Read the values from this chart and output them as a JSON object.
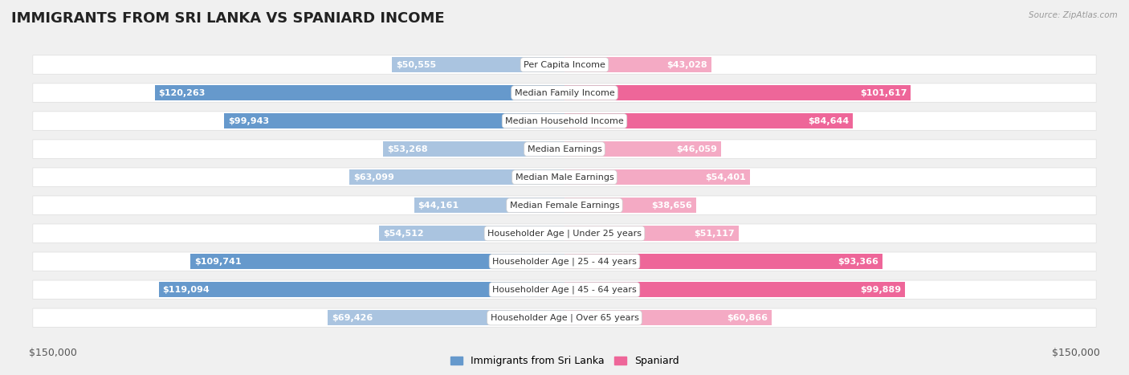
{
  "title": "IMMIGRANTS FROM SRI LANKA VS SPANIARD INCOME",
  "source": "Source: ZipAtlas.com",
  "categories": [
    "Per Capita Income",
    "Median Family Income",
    "Median Household Income",
    "Median Earnings",
    "Median Male Earnings",
    "Median Female Earnings",
    "Householder Age | Under 25 years",
    "Householder Age | 25 - 44 years",
    "Householder Age | 45 - 64 years",
    "Householder Age | Over 65 years"
  ],
  "sri_lanka_values": [
    50555,
    120263,
    99943,
    53268,
    63099,
    44161,
    54512,
    109741,
    119094,
    69426
  ],
  "spaniard_values": [
    43028,
    101617,
    84644,
    46059,
    54401,
    38656,
    51117,
    93366,
    99889,
    60866
  ],
  "sri_lanka_labels": [
    "$50,555",
    "$120,263",
    "$99,943",
    "$53,268",
    "$63,099",
    "$44,161",
    "$54,512",
    "$109,741",
    "$119,094",
    "$69,426"
  ],
  "spaniard_labels": [
    "$43,028",
    "$101,617",
    "$84,644",
    "$46,059",
    "$54,401",
    "$38,656",
    "$51,117",
    "$93,366",
    "$99,889",
    "$60,866"
  ],
  "sri_lanka_color_strong": "#6699cc",
  "sri_lanka_color_weak": "#aac4e0",
  "spaniard_color_strong": "#ee6699",
  "spaniard_color_weak": "#f4aac4",
  "sri_lanka_strong_threshold": 80000,
  "max_value": 150000,
  "background_color": "#f0f0f0",
  "row_bg_color": "#ffffff",
  "row_alt_bg_color": "#f8f8f8",
  "title_fontsize": 13,
  "label_fontsize": 8,
  "category_fontsize": 8,
  "legend_fontsize": 9,
  "axis_label_fontsize": 9
}
